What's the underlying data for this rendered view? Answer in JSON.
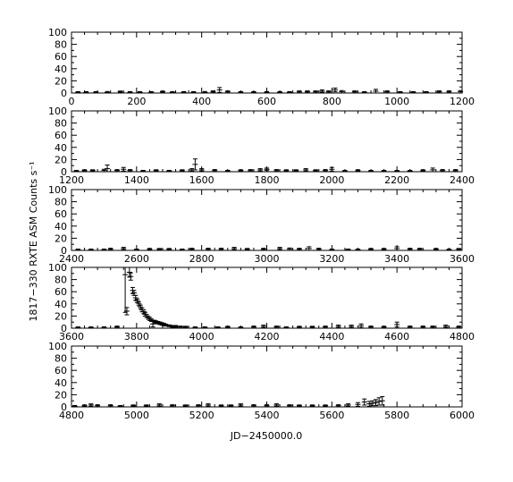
{
  "chart_data": {
    "type": "scatter",
    "ylabel": "1817−330 RXTE ASM Counts s⁻¹",
    "xlabel": "JD−2450000.0",
    "y_ticks": [
      "0",
      "20",
      "40",
      "60",
      "80",
      "100"
    ],
    "panels": [
      {
        "xlim": [
          0,
          1200
        ],
        "ylim": [
          0,
          100
        ],
        "x_ticks": [
          "0",
          "200",
          "400",
          "600",
          "800",
          "1000",
          "1200"
        ],
        "points": [
          [
            20,
            1,
            1.2
          ],
          [
            45,
            1,
            1.2
          ],
          [
            75,
            1,
            1.2
          ],
          [
            110,
            1,
            1.5
          ],
          [
            150,
            2,
            1.2
          ],
          [
            180,
            1,
            1.2
          ],
          [
            210,
            1,
            1.2
          ],
          [
            245,
            1,
            1.2
          ],
          [
            280,
            2,
            1.2
          ],
          [
            310,
            1,
            1.2
          ],
          [
            345,
            1,
            1.2
          ],
          [
            375,
            1,
            1.2
          ],
          [
            410,
            1,
            1.5
          ],
          [
            435,
            2,
            1.5
          ],
          [
            455,
            5,
            4
          ],
          [
            480,
            2,
            1.5
          ],
          [
            520,
            1,
            1.2
          ],
          [
            560,
            1,
            1.2
          ],
          [
            600,
            1,
            1.2
          ],
          [
            640,
            1,
            1.2
          ],
          [
            670,
            1,
            1.2
          ],
          [
            700,
            2,
            1.5
          ],
          [
            725,
            2,
            1.5
          ],
          [
            750,
            2,
            1.5
          ],
          [
            770,
            3,
            2
          ],
          [
            790,
            2,
            1.5
          ],
          [
            810,
            5,
            3
          ],
          [
            830,
            2,
            2
          ],
          [
            870,
            2,
            1.5
          ],
          [
            900,
            1,
            1.2
          ],
          [
            935,
            3,
            3
          ],
          [
            970,
            2,
            1.5
          ],
          [
            1010,
            1,
            1.2
          ],
          [
            1050,
            1,
            1.2
          ],
          [
            1090,
            1,
            1.2
          ],
          [
            1130,
            2,
            1.5
          ],
          [
            1160,
            2,
            1.5
          ],
          [
            1195,
            2,
            2
          ]
        ]
      },
      {
        "xlim": [
          1200,
          2400
        ],
        "ylim": [
          0,
          100
        ],
        "x_ticks": [
          "1200",
          "1400",
          "1600",
          "1800",
          "2000",
          "2200",
          "2400"
        ],
        "points": [
          [
            1215,
            1,
            1.2
          ],
          [
            1240,
            2,
            1.2
          ],
          [
            1265,
            2,
            1.2
          ],
          [
            1300,
            2,
            2
          ],
          [
            1310,
            5,
            6
          ],
          [
            1340,
            2,
            1.5
          ],
          [
            1360,
            4,
            3
          ],
          [
            1380,
            2,
            1.5
          ],
          [
            1420,
            1,
            1.2
          ],
          [
            1460,
            2,
            1.2
          ],
          [
            1500,
            1,
            1.2
          ],
          [
            1540,
            2,
            1.2
          ],
          [
            1570,
            3,
            2
          ],
          [
            1580,
            12,
            9
          ],
          [
            1600,
            3,
            2
          ],
          [
            1640,
            2,
            1.5
          ],
          [
            1680,
            1,
            1.2
          ],
          [
            1720,
            2,
            1.2
          ],
          [
            1750,
            2,
            1.5
          ],
          [
            1780,
            3,
            2
          ],
          [
            1800,
            4,
            2
          ],
          [
            1830,
            2,
            1.5
          ],
          [
            1860,
            2,
            1.2
          ],
          [
            1890,
            2,
            1.2
          ],
          [
            1920,
            3,
            2
          ],
          [
            1950,
            2,
            1.2
          ],
          [
            1980,
            2,
            1.5
          ],
          [
            2000,
            4,
            3
          ],
          [
            2040,
            1,
            1.2
          ],
          [
            2080,
            2,
            1.2
          ],
          [
            2120,
            1,
            1.2
          ],
          [
            2160,
            1,
            1.2
          ],
          [
            2200,
            1,
            1.2
          ],
          [
            2240,
            1,
            1.2
          ],
          [
            2280,
            2,
            1.2
          ],
          [
            2310,
            3,
            3
          ],
          [
            2340,
            2,
            1.5
          ],
          [
            2380,
            2,
            1.5
          ]
        ]
      },
      {
        "xlim": [
          2400,
          3600
        ],
        "ylim": [
          0,
          100
        ],
        "x_ticks": [
          "2400",
          "2600",
          "2800",
          "3000",
          "3200",
          "3400",
          "3600"
        ],
        "points": [
          [
            2420,
            1,
            1.2
          ],
          [
            2460,
            1,
            1.2
          ],
          [
            2500,
            1,
            1.2
          ],
          [
            2520,
            2,
            1.5
          ],
          [
            2560,
            3,
            2
          ],
          [
            2600,
            1,
            1.2
          ],
          [
            2640,
            2,
            1.2
          ],
          [
            2670,
            2,
            1.2
          ],
          [
            2700,
            2,
            1.2
          ],
          [
            2740,
            1,
            1.2
          ],
          [
            2770,
            2,
            1.5
          ],
          [
            2820,
            2,
            1.5
          ],
          [
            2860,
            2,
            1.5
          ],
          [
            2900,
            3,
            2
          ],
          [
            2940,
            2,
            1.2
          ],
          [
            2990,
            2,
            1.5
          ],
          [
            3040,
            3,
            2
          ],
          [
            3070,
            2,
            2
          ],
          [
            3100,
            2,
            1.5
          ],
          [
            3130,
            3,
            3
          ],
          [
            3160,
            2,
            1.5
          ],
          [
            3200,
            1,
            1.2
          ],
          [
            3250,
            1,
            1.2
          ],
          [
            3280,
            1,
            1.2
          ],
          [
            3320,
            2,
            1.2
          ],
          [
            3360,
            2,
            1.2
          ],
          [
            3400,
            3,
            3
          ],
          [
            3440,
            2,
            1.5
          ],
          [
            3470,
            2,
            1.5
          ],
          [
            3520,
            2,
            1.2
          ],
          [
            3560,
            1,
            1.2
          ],
          [
            3590,
            2,
            1.2
          ]
        ]
      },
      {
        "xlim": [
          3600,
          4800
        ],
        "ylim": [
          0,
          100
        ],
        "x_ticks": [
          "3600",
          "3800",
          "4000",
          "4200",
          "4400",
          "4600",
          "4800"
        ],
        "points": [
          [
            3620,
            1,
            1.2
          ],
          [
            3660,
            1,
            1.2
          ],
          [
            3700,
            1,
            1.2
          ],
          [
            3740,
            2,
            1.5
          ],
          [
            3765,
            88,
            62
          ],
          [
            3770,
            28,
            6
          ],
          [
            3778,
            92,
            8
          ],
          [
            3782,
            85,
            6
          ],
          [
            3788,
            62,
            5
          ],
          [
            3792,
            58,
            4
          ],
          [
            3797,
            50,
            4
          ],
          [
            3802,
            45,
            3
          ],
          [
            3807,
            40,
            3
          ],
          [
            3812,
            35,
            3
          ],
          [
            3817,
            30,
            3
          ],
          [
            3822,
            27,
            3
          ],
          [
            3826,
            23,
            3
          ],
          [
            3831,
            20,
            2.5
          ],
          [
            3836,
            17,
            2.5
          ],
          [
            3841,
            15,
            2.5
          ],
          [
            3846,
            13,
            2
          ],
          [
            3850,
            7,
            5
          ],
          [
            3855,
            11,
            2
          ],
          [
            3860,
            10,
            2
          ],
          [
            3866,
            9,
            2
          ],
          [
            3872,
            8,
            2
          ],
          [
            3878,
            7,
            2
          ],
          [
            3884,
            6,
            2
          ],
          [
            3890,
            5,
            1.5
          ],
          [
            3900,
            4,
            1.5
          ],
          [
            3910,
            3,
            1.5
          ],
          [
            3920,
            3,
            1.5
          ],
          [
            3935,
            2,
            1.5
          ],
          [
            3950,
            2,
            1.2
          ],
          [
            3980,
            1,
            1.2
          ],
          [
            4010,
            1,
            1.2
          ],
          [
            4050,
            1,
            1.2
          ],
          [
            4080,
            2,
            1.2
          ],
          [
            4120,
            1,
            1.2
          ],
          [
            4160,
            2,
            1.5
          ],
          [
            4190,
            3,
            2
          ],
          [
            4230,
            2,
            1.5
          ],
          [
            4260,
            1,
            1.2
          ],
          [
            4300,
            2,
            1.2
          ],
          [
            4340,
            2,
            1.2
          ],
          [
            4380,
            2,
            1.5
          ],
          [
            4420,
            3,
            2
          ],
          [
            4460,
            3,
            2
          ],
          [
            4490,
            4,
            3
          ],
          [
            4520,
            2,
            1.5
          ],
          [
            4560,
            2,
            1.2
          ],
          [
            4600,
            6,
            4
          ],
          [
            4640,
            2,
            1.5
          ],
          [
            4680,
            2,
            1.5
          ],
          [
            4710,
            2,
            1.5
          ],
          [
            4750,
            3,
            2
          ],
          [
            4790,
            2,
            1.5
          ]
        ]
      },
      {
        "xlim": [
          4800,
          6000
        ],
        "ylim": [
          0,
          100
        ],
        "x_ticks": [
          "4800",
          "5000",
          "5200",
          "5400",
          "5600",
          "5800",
          "6000"
        ],
        "points": [
          [
            4810,
            1,
            1.2
          ],
          [
            4840,
            2,
            1.2
          ],
          [
            4860,
            3,
            2
          ],
          [
            4880,
            2,
            1.5
          ],
          [
            4920,
            2,
            1.5
          ],
          [
            4950,
            1,
            1.2
          ],
          [
            4990,
            2,
            1.2
          ],
          [
            5030,
            2,
            1.2
          ],
          [
            5070,
            3,
            2
          ],
          [
            5110,
            2,
            1.5
          ],
          [
            5150,
            2,
            1.2
          ],
          [
            5190,
            2,
            1.5
          ],
          [
            5220,
            3,
            2
          ],
          [
            5260,
            2,
            1.2
          ],
          [
            5290,
            2,
            1.2
          ],
          [
            5320,
            3,
            2
          ],
          [
            5360,
            2,
            1.5
          ],
          [
            5400,
            2,
            1.5
          ],
          [
            5430,
            3,
            2
          ],
          [
            5470,
            2,
            1.5
          ],
          [
            5500,
            2,
            1.2
          ],
          [
            5540,
            2,
            1.2
          ],
          [
            5580,
            2,
            1.2
          ],
          [
            5620,
            2,
            1.5
          ],
          [
            5650,
            3,
            2
          ],
          [
            5680,
            4,
            3
          ],
          [
            5700,
            8,
            5
          ],
          [
            5715,
            5,
            4
          ],
          [
            5725,
            6,
            4
          ],
          [
            5735,
            7,
            5
          ],
          [
            5745,
            9,
            6
          ],
          [
            5755,
            10,
            7
          ]
        ]
      }
    ]
  }
}
